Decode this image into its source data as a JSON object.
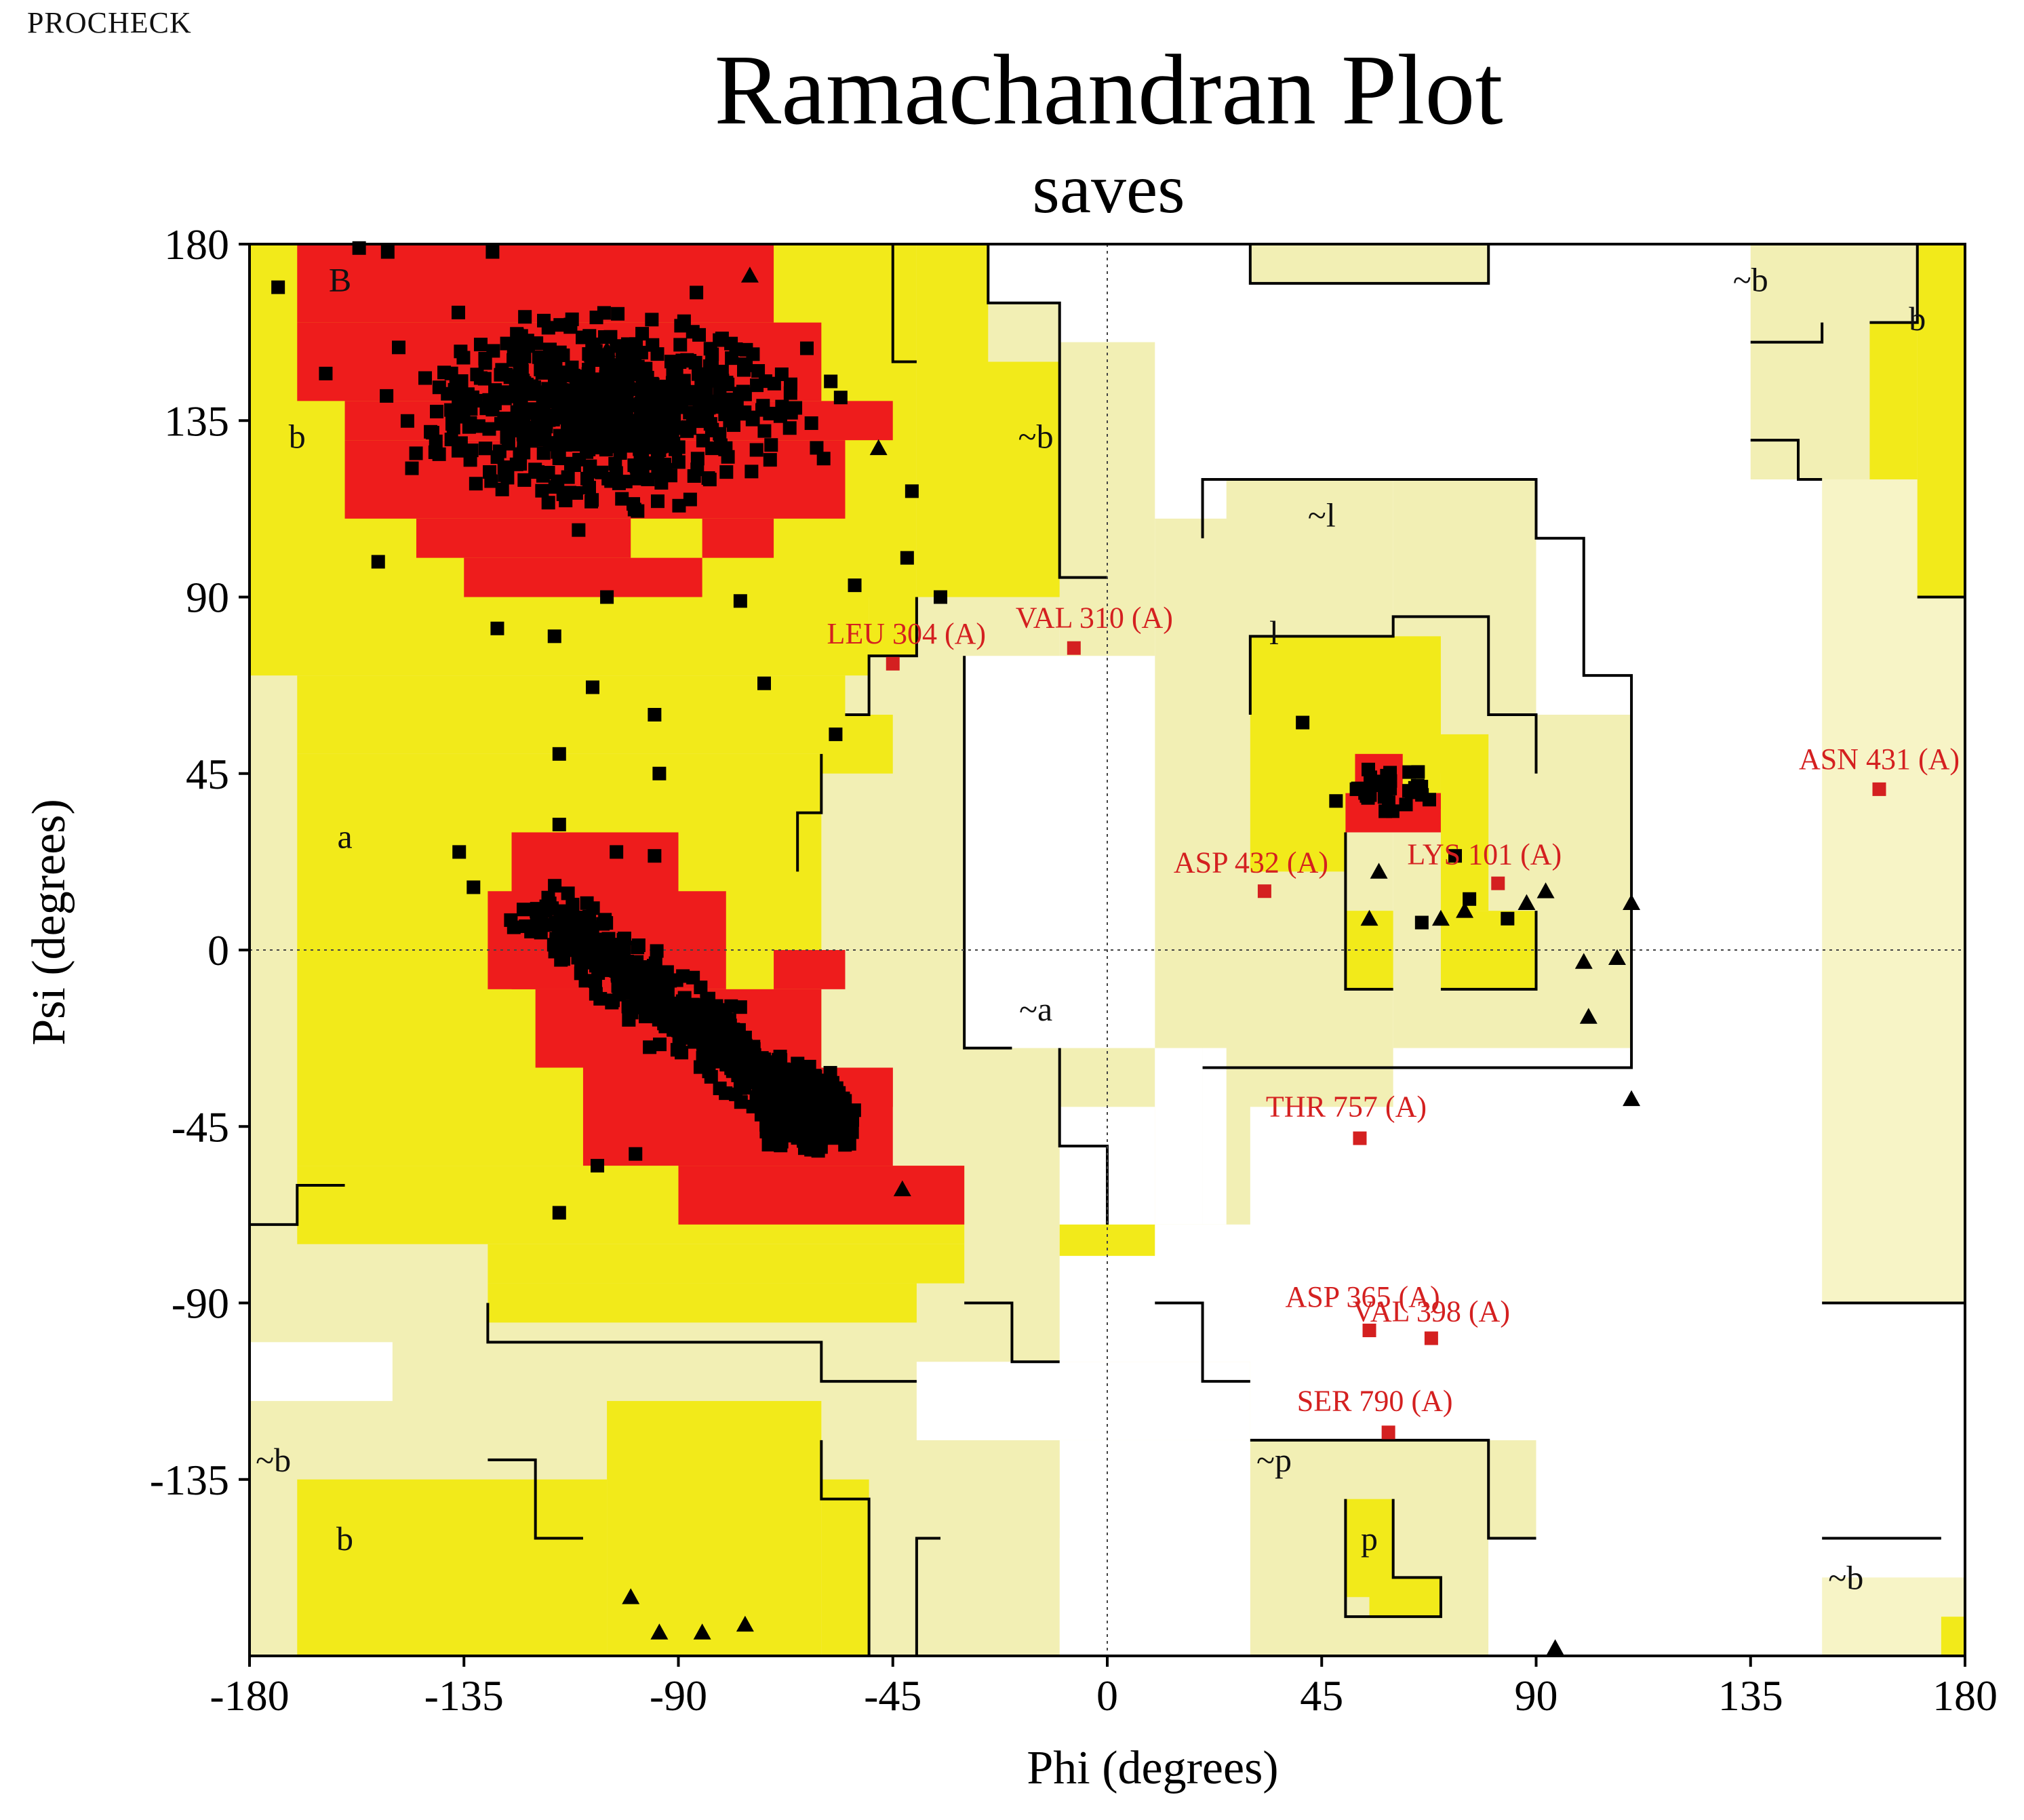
{
  "header": {
    "label": "PROCHECK"
  },
  "colors": {
    "most_favoured": "#ee1c1c",
    "allowed": "#f2ea1a",
    "generous": "#f2efb4",
    "generous_light": "#f7f4c6",
    "disallowed": "#ffffff",
    "points": "#000000",
    "outliers": "#d42020"
  },
  "chart_data": {
    "type": "scatter",
    "title": "Ramachandran Plot",
    "subtitle": "saves",
    "xlabel": "Phi (degrees)",
    "ylabel": "Psi (degrees)",
    "xlim": [
      -180,
      180
    ],
    "ylim": [
      -180,
      180
    ],
    "xticks": [
      -180,
      -135,
      -90,
      -45,
      0,
      45,
      90,
      135,
      180
    ],
    "yticks": [
      180,
      135,
      90,
      45,
      0,
      -45,
      -90,
      -135
    ],
    "grid": false,
    "zero_lines": "dotted",
    "region_labels": [
      {
        "text": "B",
        "phi": -161,
        "psi": 170
      },
      {
        "text": "b",
        "phi": -170,
        "psi": 130
      },
      {
        "text": "~b",
        "phi": -15,
        "psi": 130
      },
      {
        "text": "~l",
        "phi": 45,
        "psi": 110
      },
      {
        "text": "l",
        "phi": 35,
        "psi": 80
      },
      {
        "text": "a",
        "phi": -160,
        "psi": 28
      },
      {
        "text": "~a",
        "phi": -15,
        "psi": -16
      },
      {
        "text": "~b",
        "phi": 135,
        "psi": 170
      },
      {
        "text": "b",
        "phi": 170,
        "psi": 160
      },
      {
        "text": "~b",
        "phi": -175,
        "psi": -131
      },
      {
        "text": "b",
        "phi": -160,
        "psi": -151
      },
      {
        "text": "~p",
        "phi": 35,
        "psi": -131
      },
      {
        "text": "p",
        "phi": 55,
        "psi": -151
      },
      {
        "text": "~b",
        "phi": 155,
        "psi": -161
      }
    ],
    "outliers": [
      {
        "residue": "LEU 304 (A)",
        "phi": -45,
        "psi": 73
      },
      {
        "residue": "VAL 310 (A)",
        "phi": -7,
        "psi": 77
      },
      {
        "residue": "ASN 431 (A)",
        "phi": 162,
        "psi": 41
      },
      {
        "residue": "ASP 432 (A)",
        "phi": 33,
        "psi": 15
      },
      {
        "residue": "LYS 101 (A)",
        "phi": 82,
        "psi": 17
      },
      {
        "residue": "THR 757 (A)",
        "phi": 53,
        "psi": -48
      },
      {
        "residue": "ASP 365 (A)",
        "phi": 55,
        "psi": -97
      },
      {
        "residue": "VAL 398 (A)",
        "phi": 68,
        "psi": -99
      },
      {
        "residue": "SER 790 (A)",
        "phi": 59,
        "psi": -123
      }
    ],
    "glycines": [
      {
        "phi": -105,
        "psi": 153
      },
      {
        "phi": -75,
        "psi": 172
      },
      {
        "phi": -48,
        "psi": 128
      },
      {
        "phi": 88,
        "psi": 12
      },
      {
        "phi": 92,
        "psi": 15
      },
      {
        "phi": 110,
        "psi": 12
      },
      {
        "phi": 100,
        "psi": -3
      },
      {
        "phi": 107,
        "psi": -2
      },
      {
        "phi": 101,
        "psi": -17
      },
      {
        "phi": 110,
        "psi": -38
      },
      {
        "phi": 94,
        "psi": -178
      },
      {
        "phi": -94,
        "psi": -174
      },
      {
        "phi": -100,
        "psi": -165
      },
      {
        "phi": -85,
        "psi": -174
      },
      {
        "phi": -76,
        "psi": -172
      },
      {
        "phi": 57,
        "psi": 20
      },
      {
        "phi": 70,
        "psi": 8
      },
      {
        "phi": 75,
        "psi": 10
      },
      {
        "phi": 55,
        "psi": 8
      },
      {
        "phi": -43,
        "psi": -61
      }
    ],
    "residues_sample": [
      {
        "phi": -157,
        "psi": 179
      },
      {
        "phi": -151,
        "psi": 178
      },
      {
        "phi": -129,
        "psi": 178
      },
      {
        "phi": -174,
        "psi": 169
      },
      {
        "phi": -164,
        "psi": 147
      },
      {
        "phi": -153,
        "psi": 99
      },
      {
        "phi": -128,
        "psi": 82
      },
      {
        "phi": -116,
        "psi": 80
      },
      {
        "phi": -108,
        "psi": 67
      },
      {
        "phi": -95,
        "psi": 60
      },
      {
        "phi": -115,
        "psi": 50
      },
      {
        "phi": -94,
        "psi": 45
      },
      {
        "phi": -72,
        "psi": 68
      },
      {
        "phi": -57,
        "psi": 55
      },
      {
        "phi": -105,
        "psi": 90
      },
      {
        "phi": -77,
        "psi": 89
      },
      {
        "phi": -53,
        "psi": 93
      },
      {
        "phi": -42,
        "psi": 100
      },
      {
        "phi": -35,
        "psi": 90
      },
      {
        "phi": -41,
        "psi": 117
      },
      {
        "phi": -115,
        "psi": 32
      },
      {
        "phi": -136,
        "psi": 25
      },
      {
        "phi": -133,
        "psi": 16
      },
      {
        "phi": -103,
        "psi": 25
      },
      {
        "phi": -95,
        "psi": 24
      },
      {
        "phi": -115,
        "psi": -67
      },
      {
        "phi": -107,
        "psi": -55
      },
      {
        "phi": -99,
        "psi": -52
      },
      {
        "phi": 41,
        "psi": 58
      },
      {
        "phi": 48,
        "psi": 38
      },
      {
        "phi": 66,
        "psi": 7
      },
      {
        "phi": 76,
        "psi": 13
      },
      {
        "phi": 84,
        "psi": 8
      },
      {
        "phi": 73,
        "psi": 24
      }
    ]
  }
}
